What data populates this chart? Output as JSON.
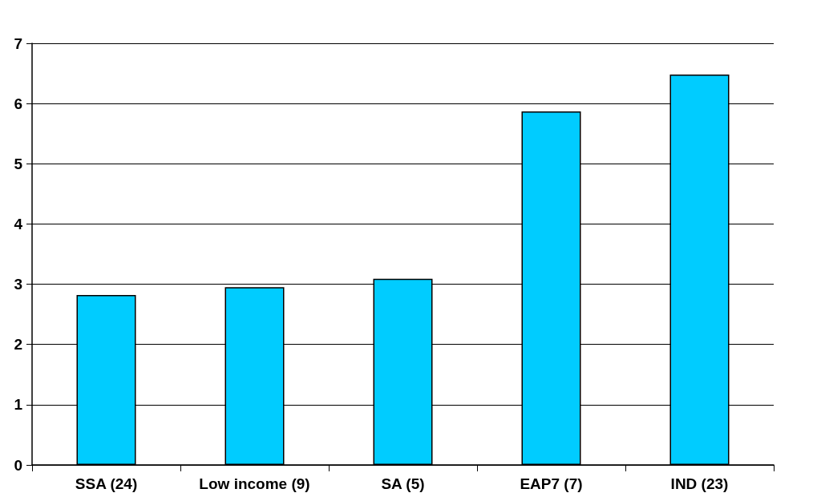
{
  "chart_data": {
    "type": "bar",
    "categories": [
      "SSA (24)",
      "Low income (9)",
      "SA (5)",
      "EAP7 (7)",
      "IND (23)"
    ],
    "values": [
      2.82,
      2.95,
      3.09,
      5.87,
      6.48
    ],
    "color": "#00ccff",
    "ylim": [
      0,
      7
    ],
    "yticks": [
      0,
      1,
      2,
      3,
      4,
      5,
      6,
      7
    ],
    "grid": "y"
  }
}
